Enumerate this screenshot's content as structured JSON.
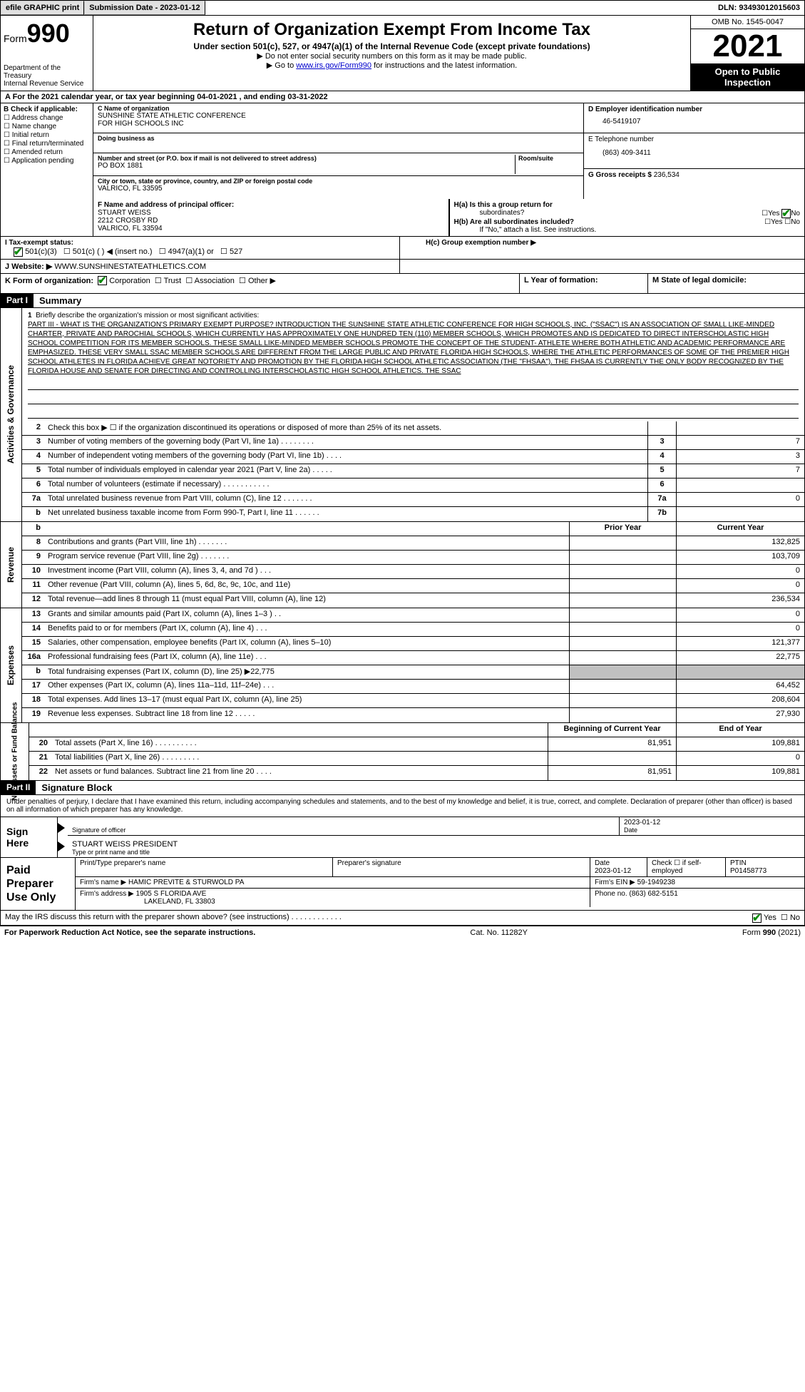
{
  "header": {
    "efile": "efile GRAPHIC print",
    "submission_label": "Submission Date - 2023-01-12",
    "dln_label": "DLN: 93493012015603"
  },
  "title_block": {
    "form_label": "Form",
    "form_number": "990",
    "dept": "Department of the Treasury",
    "irs": "Internal Revenue Service",
    "main_title": "Return of Organization Exempt From Income Tax",
    "subtitle": "Under section 501(c), 527, or 4947(a)(1) of the Internal Revenue Code (except private foundations)",
    "note1": "▶ Do not enter social security numbers on this form as it may be made public.",
    "note2_prefix": "▶ Go to ",
    "note2_link": "www.irs.gov/Form990",
    "note2_suffix": " for instructions and the latest information.",
    "omb": "OMB No. 1545-0047",
    "year": "2021",
    "open1": "Open to Public",
    "open2": "Inspection"
  },
  "row_a": "A For the 2021 calendar year, or tax year beginning 04-01-2021    , and ending 03-31-2022",
  "col_b": {
    "header": "B Check if applicable:",
    "items": [
      "Address change",
      "Name change",
      "Initial return",
      "Final return/terminated",
      "Amended return",
      "Application pending"
    ]
  },
  "col_c": {
    "name_lbl": "C Name of organization",
    "name1": "SUNSHINE STATE ATHLETIC CONFERENCE",
    "name2": "FOR HIGH SCHOOLS INC",
    "dba_lbl": "Doing business as",
    "addr_lbl": "Number and street (or P.O. box if mail is not delivered to street address)",
    "room_lbl": "Room/suite",
    "addr": "PO BOX 1881",
    "city_lbl": "City or town, state or province, country, and ZIP or foreign postal code",
    "city": "VALRICO, FL  33595"
  },
  "col_d": {
    "ein_lbl": "D Employer identification number",
    "ein": "46-5419107",
    "tel_lbl": "E Telephone number",
    "tel": "(863) 409-3411",
    "gross_lbl": "G Gross receipts $",
    "gross": "236,534"
  },
  "row_f": {
    "lbl": "F  Name and address of principal officer:",
    "name": "STUART WEISS",
    "addr1": "2212 CROSBY RD",
    "addr2": "VALRICO, FL  33594"
  },
  "row_h": {
    "ha": "H(a)  Is this a group return for",
    "ha2": "subordinates?",
    "hb": "H(b)  Are all subordinates included?",
    "hb_note": "If \"No,\" attach a list. See instructions.",
    "hc": "H(c)  Group exemption number ▶",
    "yes": "Yes",
    "no": "No"
  },
  "row_i": {
    "lbl": "I    Tax-exempt status:",
    "opts": [
      "501(c)(3)",
      "501(c) (   ) ◀ (insert no.)",
      "4947(a)(1) or",
      "527"
    ]
  },
  "row_j": {
    "lbl": "J   Website: ▶",
    "val": "WWW.SUNSHINESTATEATHLETICS.COM"
  },
  "row_k": {
    "lbl": "K Form of organization:",
    "opts": [
      "Corporation",
      "Trust",
      "Association",
      "Other ▶"
    ]
  },
  "row_l": "L Year of formation:",
  "row_m": "M State of legal domicile:",
  "part1": {
    "hdr": "Part I",
    "title": "Summary",
    "line1_lbl": "1",
    "line1_desc": "Briefly describe the organization's mission or most significant activities:",
    "mission": "PART III - WHAT IS THE ORGANIZATION'S PRIMARY EXEMPT PURPOSE? INTRODUCTION THE SUNSHINE STATE ATHLETIC CONFERENCE FOR HIGH SCHOOLS, INC. (\"SSAC\") IS AN ASSOCIATION OF SMALL LIKE-MINDED CHARTER, PRIVATE AND PAROCHIAL SCHOOLS, WHICH CURRENTLY HAS APPROXIMATELY ONE HUNDRED TEN (110) MEMBER SCHOOLS, WHICH PROMOTES AND IS DEDICATED TO DIRECT INTERSCHOLASTIC HIGH SCHOOL COMPETITION FOR ITS MEMBER SCHOOLS. THESE SMALL LIKE-MINDED MEMBER SCHOOLS PROMOTE THE CONCEPT OF THE STUDENT- ATHLETE WHERE BOTH ATHLETIC AND ACADEMIC PERFORMANCE ARE EMPHASIZED. THESE VERY SMALL SSAC MEMBER SCHOOLS ARE DIFFERENT FROM THE LARGE PUBLIC AND PRIVATE FLORIDA HIGH SCHOOLS, WHERE THE ATHLETIC PERFORMANCES OF SOME OF THE PREMIER HIGH SCHOOL ATHLETES IN FLORIDA ACHIEVE GREAT NOTORIETY AND PROMOTION BY THE FLORIDA HIGH SCHOOL ATHLETIC ASSOCIATION (THE \"FHSAA\"). THE FHSAA IS CURRENTLY THE ONLY BODY RECOGNIZED BY THE FLORIDA HOUSE AND SENATE FOR DIRECTING AND CONTROLLING INTERSCHOLASTIC HIGH SCHOOL ATHLETICS. THE SSAC",
    "side1": "Activities & Governance",
    "lines_gov": [
      {
        "n": "2",
        "d": "Check this box ▶ ☐ if the organization discontinued its operations or disposed of more than 25% of its net assets.",
        "box": "",
        "v": ""
      },
      {
        "n": "3",
        "d": "Number of voting members of the governing body (Part VI, line 1a)   .    .    .    .    .    .    .    .",
        "box": "3",
        "v": "7"
      },
      {
        "n": "4",
        "d": "Number of independent voting members of the governing body (Part VI, line 1b)    .    .    .    .",
        "box": "4",
        "v": "3"
      },
      {
        "n": "5",
        "d": "Total number of individuals employed in calendar year 2021 (Part V, line 2a)    .    .    .    .    .",
        "box": "5",
        "v": "7"
      },
      {
        "n": "6",
        "d": "Total number of volunteers (estimate if necessary)   .    .    .    .    .    .    .    .    .    .    .",
        "box": "6",
        "v": ""
      },
      {
        "n": "7a",
        "d": "Total unrelated business revenue from Part VIII, column (C), line 12   .    .    .    .    .    .    .",
        "box": "7a",
        "v": "0"
      },
      {
        "n": "b",
        "d": "Net unrelated business taxable income from Form 990-T, Part I, line 11   .    .    .    .    .    .",
        "box": "7b",
        "v": ""
      }
    ],
    "side2": "Revenue",
    "col_prior": "Prior Year",
    "col_current": "Current Year",
    "lines_rev": [
      {
        "n": "8",
        "d": "Contributions and grants (Part VIII, line 1h)   .    .    .    .    .    .    .",
        "p": "",
        "c": "132,825"
      },
      {
        "n": "9",
        "d": "Program service revenue (Part VIII, line 2g)   .    .    .    .    .    .    .",
        "p": "",
        "c": "103,709"
      },
      {
        "n": "10",
        "d": "Investment income (Part VIII, column (A), lines 3, 4, and 7d )   .    .    .",
        "p": "",
        "c": "0"
      },
      {
        "n": "11",
        "d": "Other revenue (Part VIII, column (A), lines 5, 6d, 8c, 9c, 10c, and 11e)",
        "p": "",
        "c": "0"
      },
      {
        "n": "12",
        "d": "Total revenue—add lines 8 through 11 (must equal Part VIII, column (A), line 12)",
        "p": "",
        "c": "236,534"
      }
    ],
    "side3": "Expenses",
    "lines_exp": [
      {
        "n": "13",
        "d": "Grants and similar amounts paid (Part IX, column (A), lines 1–3 )  .    .",
        "p": "",
        "c": "0"
      },
      {
        "n": "14",
        "d": "Benefits paid to or for members (Part IX, column (A), line 4)  .    .    .",
        "p": "",
        "c": "0"
      },
      {
        "n": "15",
        "d": "Salaries, other compensation, employee benefits (Part IX, column (A), lines 5–10)",
        "p": "",
        "c": "121,377"
      },
      {
        "n": "16a",
        "d": "Professional fundraising fees (Part IX, column (A), line 11e)   .    .    .",
        "p": "",
        "c": "22,775"
      },
      {
        "n": "b",
        "d": "Total fundraising expenses (Part IX, column (D), line 25) ▶22,775",
        "p": "shaded",
        "c": "shaded"
      },
      {
        "n": "17",
        "d": "Other expenses (Part IX, column (A), lines 11a–11d, 11f–24e)   .    .    .",
        "p": "",
        "c": "64,452"
      },
      {
        "n": "18",
        "d": "Total expenses. Add lines 13–17 (must equal Part IX, column (A), line 25)",
        "p": "",
        "c": "208,604"
      },
      {
        "n": "19",
        "d": "Revenue less expenses. Subtract line 18 from line 12   .    .    .    .    .",
        "p": "",
        "c": "27,930"
      }
    ],
    "side4": "Net Assets or Fund Balances",
    "col_begin": "Beginning of Current Year",
    "col_end": "End of Year",
    "lines_net": [
      {
        "n": "20",
        "d": "Total assets (Part X, line 16)  .    .    .    .    .    .    .    .    .    .",
        "p": "81,951",
        "c": "109,881"
      },
      {
        "n": "21",
        "d": "Total liabilities (Part X, line 26)  .    .    .    .    .    .    .    .    .",
        "p": "",
        "c": "0"
      },
      {
        "n": "22",
        "d": "Net assets or fund balances. Subtract line 21 from line 20  .    .    .    .",
        "p": "81,951",
        "c": "109,881"
      }
    ]
  },
  "part2": {
    "hdr": "Part II",
    "title": "Signature Block",
    "penalty": "Under penalties of perjury, I declare that I have examined this return, including accompanying schedules and statements, and to the best of my knowledge and belief, it is true, correct, and complete. Declaration of preparer (other than officer) is based on all information of which preparer has any knowledge.",
    "sign_here": "Sign Here",
    "sig_officer": "Signature of officer",
    "sig_date": "2023-01-12",
    "date_lbl": "Date",
    "officer_name": "STUART WEISS PRESIDENT",
    "type_name": "Type or print name and title",
    "paid": "Paid Preparer Use Only",
    "prep_name_lbl": "Print/Type preparer's name",
    "prep_sig_lbl": "Preparer's signature",
    "prep_date_lbl": "Date",
    "prep_date": "2023-01-12",
    "check_if": "Check ☐ if self-employed",
    "ptin_lbl": "PTIN",
    "ptin": "P01458773",
    "firm_name_lbl": "Firm's name    ▶",
    "firm_name": "HAMIC PREVITE & STURWOLD PA",
    "firm_ein_lbl": "Firm's EIN ▶",
    "firm_ein": "59-1949238",
    "firm_addr_lbl": "Firm's address ▶",
    "firm_addr1": "1905 S FLORIDA AVE",
    "firm_addr2": "LAKELAND, FL  33803",
    "phone_lbl": "Phone no.",
    "phone": "(863) 682-5151",
    "discuss": "May the IRS discuss this return with the preparer shown above? (see instructions)    .    .    .    .    .    .    .    .    .    .    .    .",
    "yes": "Yes",
    "no": "No"
  },
  "footer": {
    "left": "For Paperwork Reduction Act Notice, see the separate instructions.",
    "mid": "Cat. No. 11282Y",
    "right": "Form 990 (2021)"
  }
}
